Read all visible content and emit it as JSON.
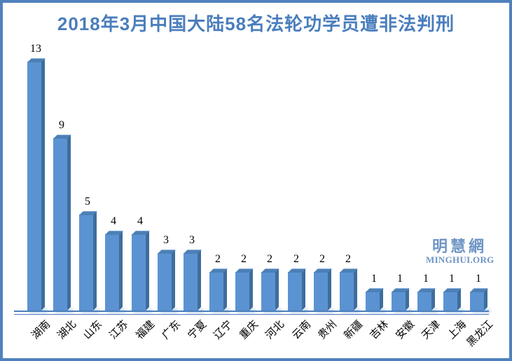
{
  "frame": {
    "border_color": "#4f81bd",
    "background": "#ffffff"
  },
  "chart_data": {
    "type": "bar",
    "title": "2018年3月中国大陆58名法轮功学员遭非法判刑",
    "title_color": "#4a7ebc",
    "categories": [
      "湖南",
      "湖北",
      "山东",
      "江苏",
      "福建",
      "广东",
      "宁夏",
      "辽宁",
      "重庆",
      "河北",
      "云南",
      "贵州",
      "新疆",
      "吉林",
      "安徽",
      "天津",
      "上海",
      "黑龙江"
    ],
    "values": [
      13,
      9,
      5,
      4,
      4,
      3,
      3,
      2,
      2,
      2,
      2,
      2,
      2,
      1,
      1,
      1,
      1,
      1
    ],
    "xlabel": "",
    "ylabel": "",
    "ylim": [
      0,
      14
    ],
    "grid": false,
    "legend": "none",
    "y_axis_visible": false,
    "data_labels": "above-bars",
    "data_label_color": "#000000",
    "x_tick_label_rotation_deg": 45,
    "bar_face_color": "#5b93d2",
    "bar_side_color": "#3f6d9c",
    "bar_top_color": "#4c80b6",
    "axis_line_color": "#4a7ebc"
  },
  "watermark": {
    "chinese": "明慧網",
    "latin": "MINGHUI.ORG",
    "color": "#6e95c5"
  }
}
